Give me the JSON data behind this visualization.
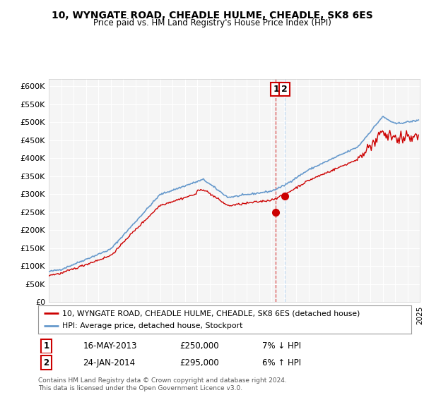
{
  "title": "10, WYNGATE ROAD, CHEADLE HULME, CHEADLE, SK8 6ES",
  "subtitle": "Price paid vs. HM Land Registry's House Price Index (HPI)",
  "ylabel_ticks": [
    "£0",
    "£50K",
    "£100K",
    "£150K",
    "£200K",
    "£250K",
    "£300K",
    "£350K",
    "£400K",
    "£450K",
    "£500K",
    "£550K",
    "£600K"
  ],
  "ytick_values": [
    0,
    50000,
    100000,
    150000,
    200000,
    250000,
    300000,
    350000,
    400000,
    450000,
    500000,
    550000,
    600000
  ],
  "hpi_color": "#6699cc",
  "price_color": "#cc0000",
  "marker1_date": 2013.37,
  "marker1_price": 250000,
  "marker2_date": 2014.07,
  "marker2_price": 295000,
  "transaction1_date": "16-MAY-2013",
  "transaction1_price": "£250,000",
  "transaction1_hpi": "7% ↓ HPI",
  "transaction2_date": "24-JAN-2014",
  "transaction2_price": "£295,000",
  "transaction2_hpi": "6% ↑ HPI",
  "legend_label1": "10, WYNGATE ROAD, CHEADLE HULME, CHEADLE, SK8 6ES (detached house)",
  "legend_label2": "HPI: Average price, detached house, Stockport",
  "footer": "Contains HM Land Registry data © Crown copyright and database right 2024.\nThis data is licensed under the Open Government Licence v3.0.",
  "xmin": 1995,
  "xmax": 2025,
  "ymin": 0,
  "ymax": 620000
}
